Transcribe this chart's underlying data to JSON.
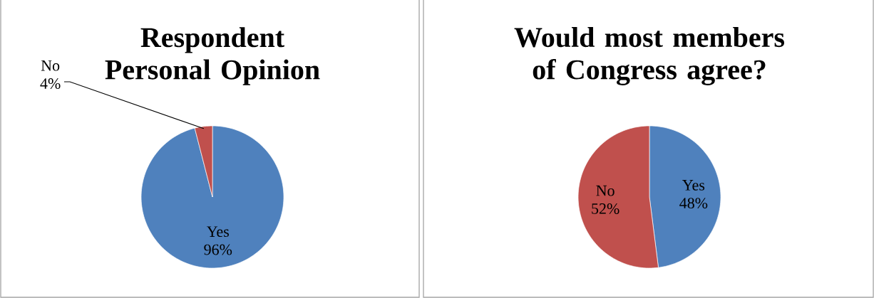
{
  "chart_data": [
    {
      "type": "pie",
      "title": "Respondent Personal Opinion",
      "categories": [
        "Yes",
        "No"
      ],
      "values": [
        96,
        4
      ],
      "colors": [
        "#4f81bd",
        "#c0504d"
      ],
      "value_labels": [
        "96%",
        "4%"
      ]
    },
    {
      "type": "pie",
      "title": "Would most members of Congress agree?",
      "categories": [
        "Yes",
        "No"
      ],
      "values": [
        48,
        52
      ],
      "colors": [
        "#4f81bd",
        "#c0504d"
      ],
      "value_labels": [
        "48%",
        "52%"
      ]
    }
  ]
}
